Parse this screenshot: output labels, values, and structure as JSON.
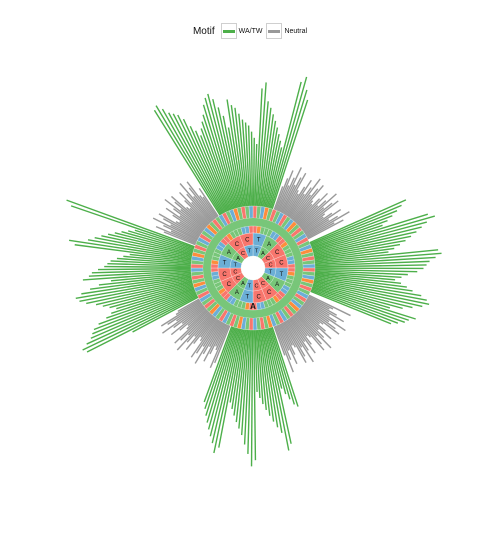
{
  "chart_data": {
    "type": "radial-bar",
    "legend": {
      "title": "Motif",
      "position": "top",
      "entries": [
        {
          "name": "WA/TW",
          "color": "#4daf4a"
        },
        {
          "name": "Neutral",
          "color": "#999999"
        }
      ]
    },
    "center_letter": "A",
    "rings": {
      "inner": [
        "T",
        "A",
        "C",
        "C",
        "T",
        "A",
        "C",
        "C",
        "T",
        "A",
        "C",
        "C",
        "T",
        "A",
        "C",
        "T"
      ],
      "middle": [
        "T",
        "A",
        "C",
        "C",
        "T",
        "A",
        "C",
        "C",
        "T",
        "A",
        "C",
        "C",
        "T",
        "A",
        "C",
        "C"
      ]
    },
    "nucleotide_colors": {
      "A": "#78c679",
      "C": "#f8766d",
      "G": "#fd8d3c",
      "T": "#6baed6"
    },
    "series": [
      {
        "name": "WA/TW",
        "values": [
          200,
          205,
          195,
          185,
          180,
          175,
          165,
          150,
          140,
          130,
          140,
          150,
          160,
          175,
          185,
          190,
          180,
          165,
          150,
          130,
          175,
          165,
          160,
          150,
          140,
          135,
          130,
          120,
          110,
          100,
          190,
          200,
          170,
          160,
          150,
          140,
          130,
          120,
          110,
          100,
          210,
          220,
          200,
          185,
          170,
          160,
          150,
          140,
          130,
          120,
          195,
          205,
          190,
          180,
          170,
          160,
          150,
          140,
          130,
          120
        ]
      },
      {
        "name": "Neutral",
        "values": [
          40,
          55,
          70,
          45,
          60,
          80,
          50,
          65,
          75,
          45,
          40,
          55,
          70,
          45,
          60,
          80,
          50,
          65,
          75,
          45,
          40,
          55,
          70,
          45,
          60,
          80,
          50,
          65,
          75,
          45,
          40,
          55,
          70,
          45,
          60,
          80,
          50,
          65,
          75,
          45,
          40,
          55,
          70,
          45,
          60,
          80,
          50,
          65,
          75,
          45,
          40,
          55,
          70,
          45,
          60,
          80,
          50,
          65,
          75,
          45
        ]
      }
    ],
    "bar_groups_deg": [
      {
        "series": "WA/TW",
        "start": -32,
        "end": 18
      },
      {
        "series": "Neutral",
        "start": 20,
        "end": 62
      },
      {
        "series": "WA/TW",
        "start": 66,
        "end": 112
      },
      {
        "series": "Neutral",
        "start": 116,
        "end": 160
      },
      {
        "series": "WA/TW",
        "start": 162,
        "end": 200
      },
      {
        "series": "Neutral",
        "start": 202,
        "end": 240
      },
      {
        "series": "WA/TW",
        "start": 242,
        "end": 290
      },
      {
        "series": "Neutral",
        "start": 292,
        "end": 326
      }
    ]
  }
}
